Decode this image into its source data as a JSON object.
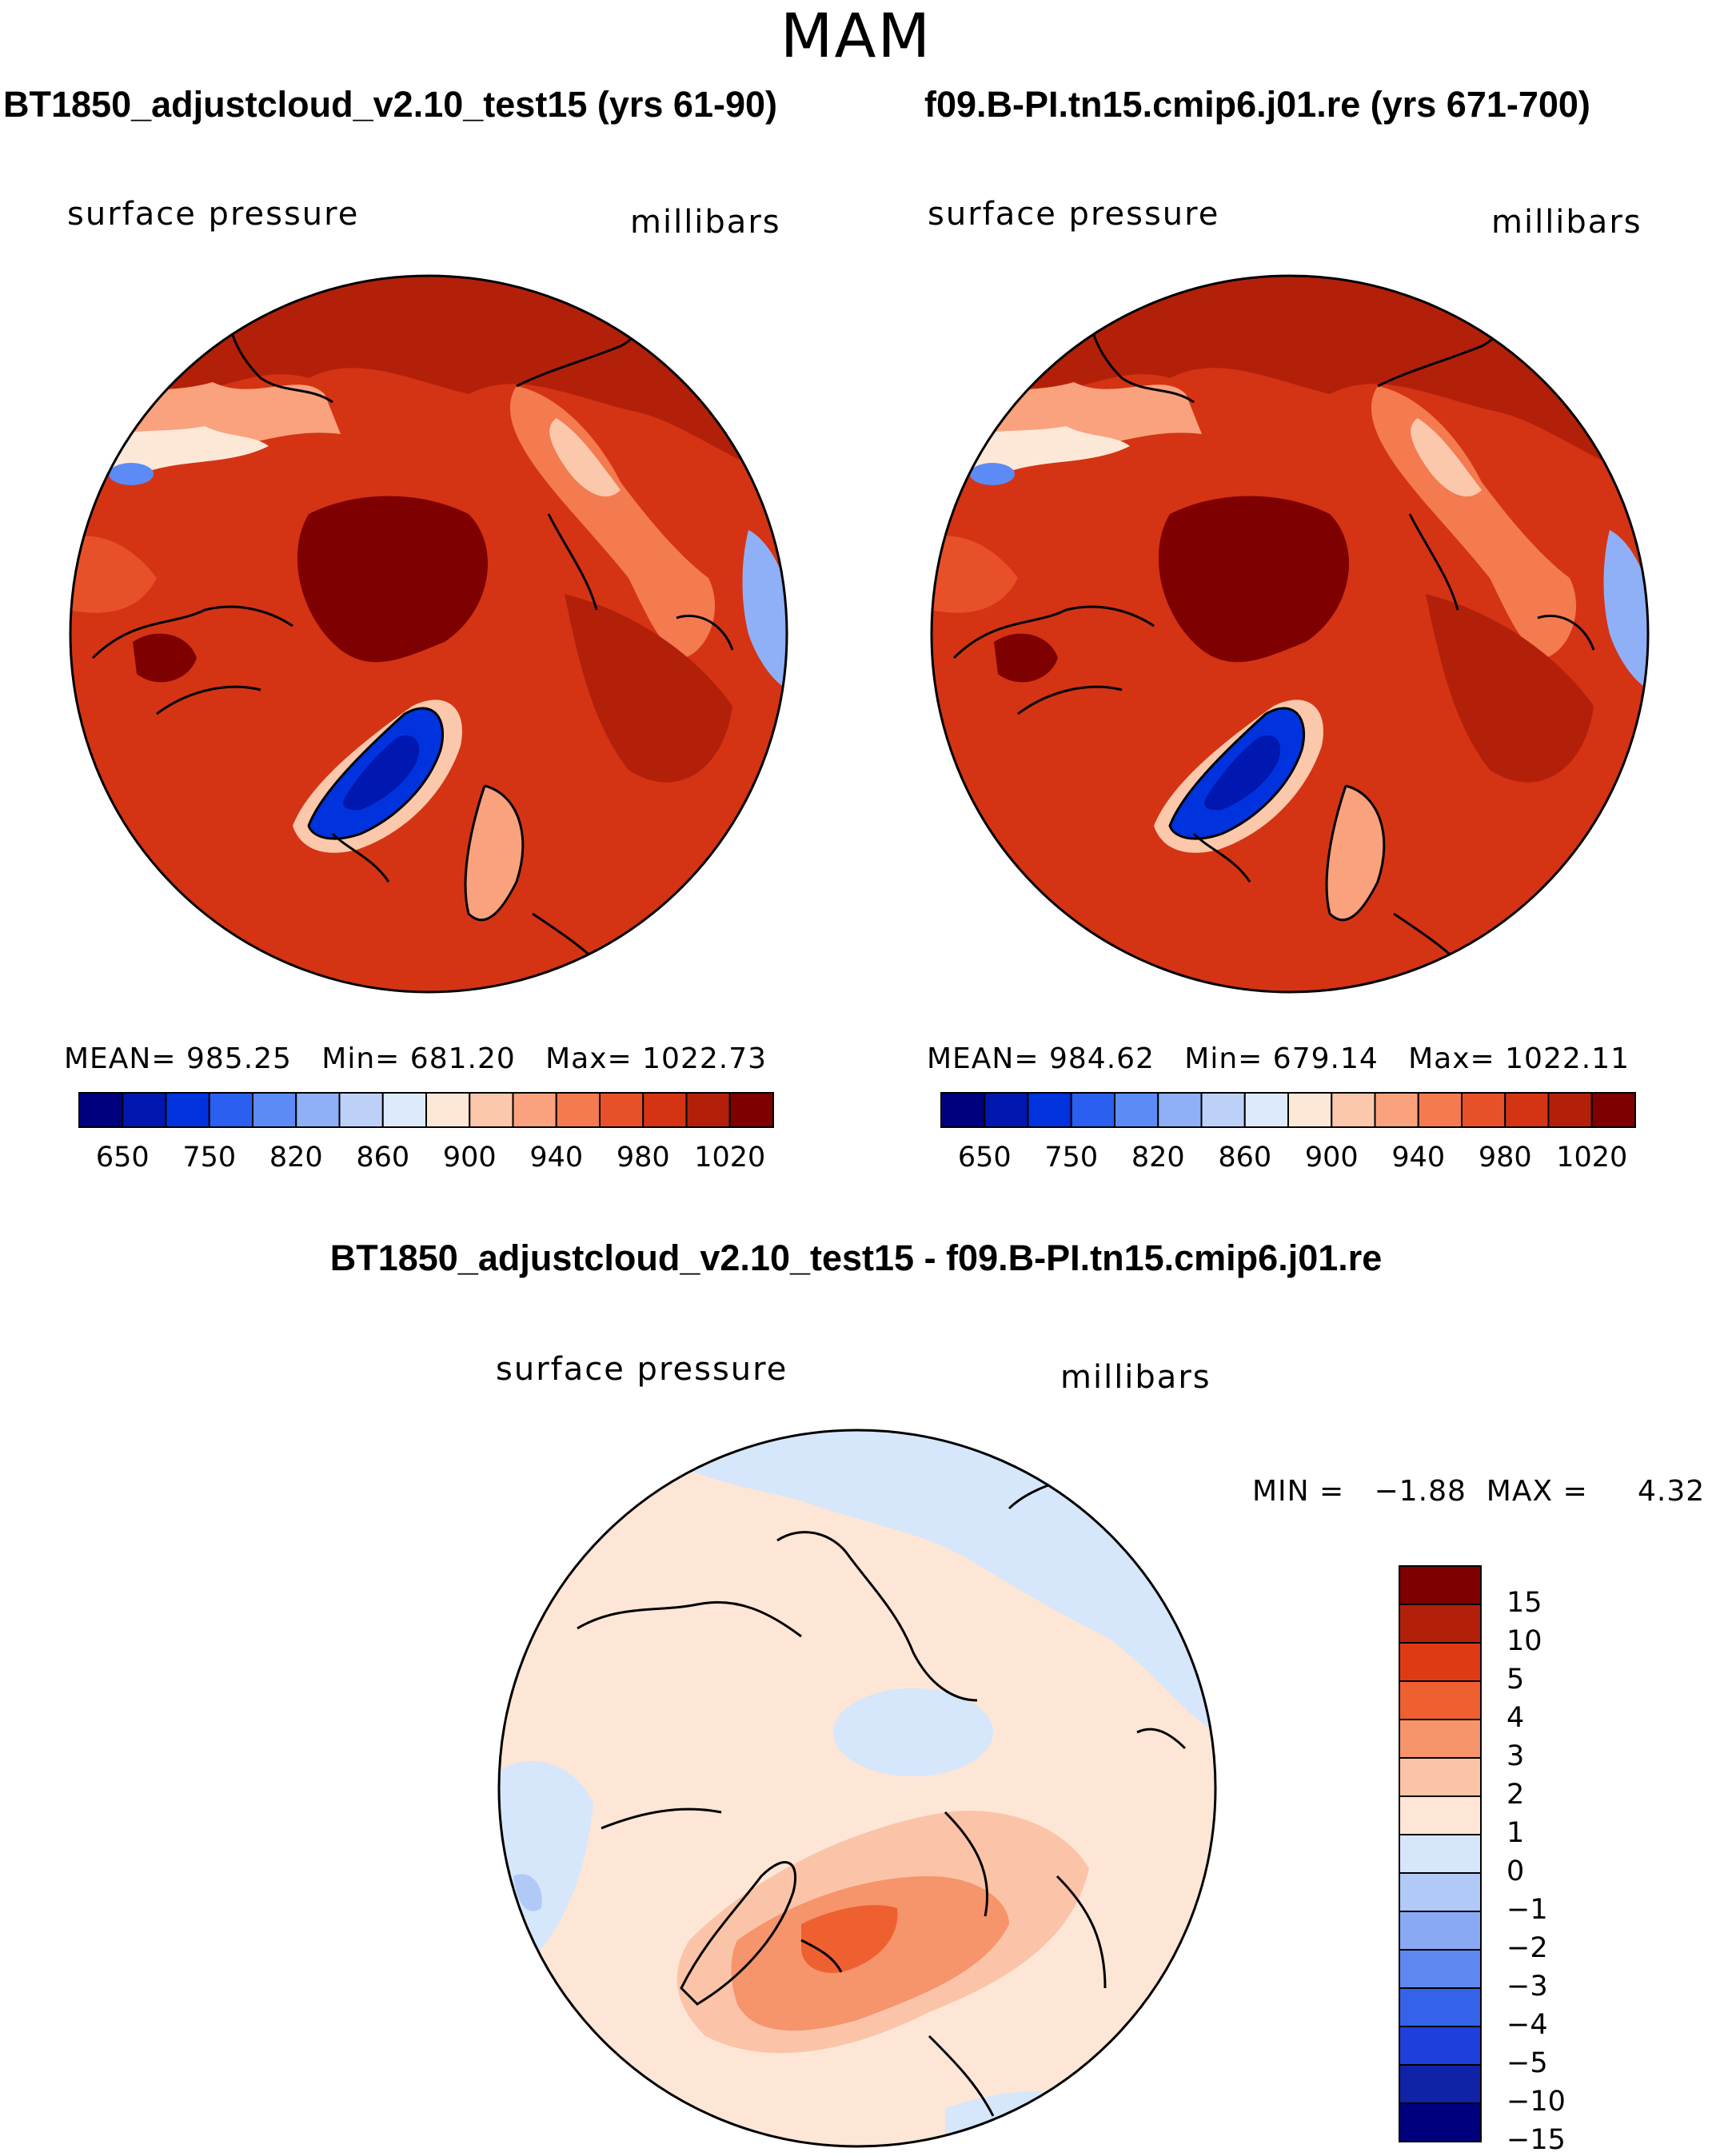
{
  "figure": {
    "season": "MAM",
    "diff_title": "BT1850_adjustcloud_v2.10_test15 - f09.B-PI.tn15.cmip6.j01.re"
  },
  "panels": [
    {
      "title": "BT1850_adjustcloud_v2.10_test15 (yrs 61-90)",
      "variable": "surface pressure",
      "units": "millibars",
      "stats": {
        "mean_label": "MEAN=",
        "mean": "985.25",
        "min_label": "Min=",
        "min": "681.20",
        "max_label": "Max=",
        "max": "1022.73"
      },
      "colorbar_ticks": [
        "650",
        "750",
        "820",
        "860",
        "900",
        "940",
        "980",
        "1020"
      ]
    },
    {
      "title": "f09.B-PI.tn15.cmip6.j01.re (yrs 671-700)",
      "variable": "surface pressure",
      "units": "millibars",
      "stats": {
        "mean_label": "MEAN=",
        "mean": "984.62",
        "min_label": "Min=",
        "min": "679.14",
        "max_label": "Max=",
        "max": "1022.11"
      },
      "colorbar_ticks": [
        "650",
        "750",
        "820",
        "860",
        "900",
        "940",
        "980",
        "1020"
      ]
    }
  ],
  "difference": {
    "variable": "surface pressure",
    "units": "millibars",
    "min_label": "MIN =",
    "min": "−1.88",
    "max_label": "MAX =",
    "max": "4.32",
    "colorbar_ticks": [
      "15",
      "10",
      "5",
      "4",
      "3",
      "2",
      "1",
      "0",
      "−1",
      "−2",
      "−3",
      "−4",
      "−5",
      "−10",
      "−15"
    ]
  },
  "colors": {
    "abs_scale": [
      "#00007f",
      "#0018b0",
      "#0033dd",
      "#2a5ff0",
      "#5d8bf5",
      "#8fb0f6",
      "#bdd1f8",
      "#ddeafb",
      "#fde8d8",
      "#fbc8ac",
      "#f9a27d",
      "#f47a50",
      "#e8502a",
      "#d43414",
      "#b3200a",
      "#7f0000"
    ],
    "diff_scale": [
      "#7f0000",
      "#b3200a",
      "#e03a14",
      "#ef6030",
      "#f6946c",
      "#fbc4a8",
      "#fde6d6",
      "#d6e6fb",
      "#b1c9f6",
      "#89a9f3",
      "#5e87ef",
      "#3463ea",
      "#1e3fdc",
      "#1022a6",
      "#00007f"
    ]
  },
  "chart_data": [
    {
      "type": "heatmap",
      "title": "BT1850_adjustcloud_v2.10_test15 (yrs 61-90)",
      "variable": "surface pressure",
      "units": "millibars",
      "projection": "north polar stereographic",
      "mean": 985.25,
      "min": 681.2,
      "max": 1022.73,
      "levels": [
        650,
        750,
        820,
        860,
        900,
        940,
        980,
        1020
      ]
    },
    {
      "type": "heatmap",
      "title": "f09.B-PI.tn15.cmip6.j01.re (yrs 671-700)",
      "variable": "surface pressure",
      "units": "millibars",
      "projection": "north polar stereographic",
      "mean": 984.62,
      "min": 679.14,
      "max": 1022.11,
      "levels": [
        650,
        750,
        820,
        860,
        900,
        940,
        980,
        1020
      ]
    },
    {
      "type": "heatmap",
      "title": "BT1850_adjustcloud_v2.10_test15 - f09.B-PI.tn15.cmip6.j01.re",
      "variable": "surface pressure",
      "units": "millibars",
      "projection": "north polar stereographic",
      "min": -1.88,
      "max": 4.32,
      "levels": [
        -15,
        -10,
        -5,
        -4,
        -3,
        -2,
        -1,
        0,
        1,
        2,
        3,
        4,
        5,
        10,
        15
      ]
    }
  ]
}
